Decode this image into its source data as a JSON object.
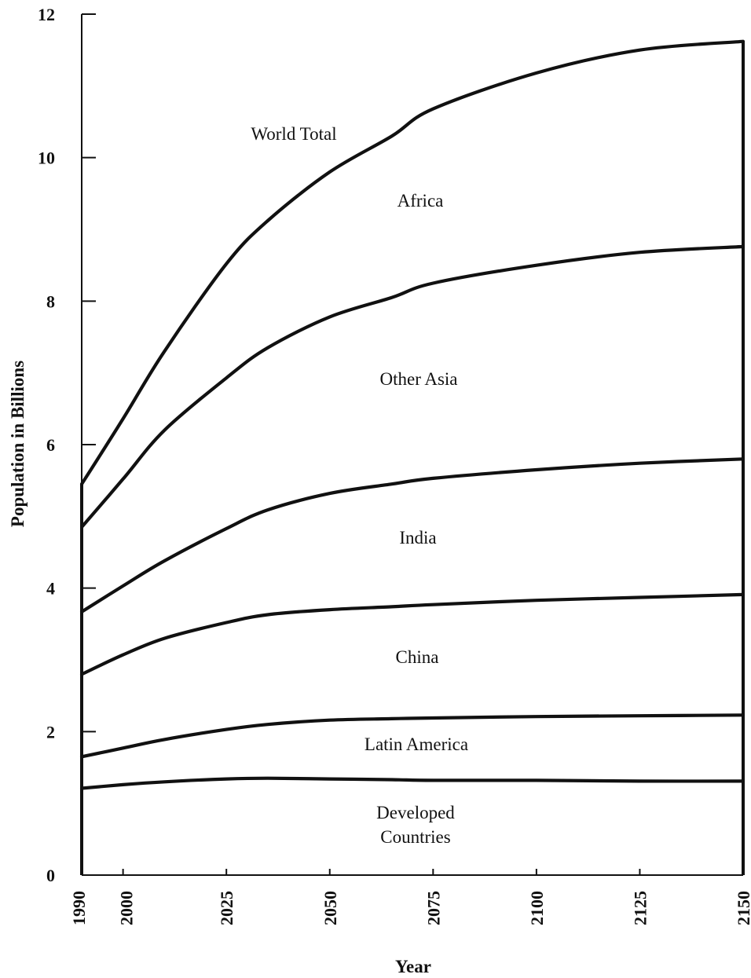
{
  "chart_data": {
    "type": "area",
    "stacked": true,
    "title": "",
    "xlabel": "Year",
    "ylabel": "Population in Billions",
    "xlim": [
      1990,
      2150
    ],
    "ylim": [
      0,
      12
    ],
    "x_ticks": [
      "1990",
      "2000",
      "2025",
      "2050",
      "2075",
      "2100",
      "2125",
      "2150"
    ],
    "y_ticks": [
      "0",
      "2",
      "4",
      "6",
      "8",
      "10",
      "12"
    ],
    "grid": false,
    "legend": "none (regions labeled inside bands)",
    "x": [
      1990,
      2000,
      2010,
      2025,
      2035,
      2050,
      2065,
      2075,
      2100,
      2125,
      2150
    ],
    "series": [
      {
        "name": "Developed Countries",
        "cumulative": [
          1.21,
          1.26,
          1.3,
          1.34,
          1.35,
          1.34,
          1.33,
          1.32,
          1.32,
          1.31,
          1.31
        ]
      },
      {
        "name": "Latin America",
        "cumulative": [
          1.65,
          1.77,
          1.89,
          2.03,
          2.1,
          2.16,
          2.18,
          2.19,
          2.21,
          2.22,
          2.23
        ]
      },
      {
        "name": "China",
        "cumulative": [
          2.8,
          3.07,
          3.3,
          3.52,
          3.63,
          3.7,
          3.74,
          3.77,
          3.83,
          3.87,
          3.91
        ]
      },
      {
        "name": "India",
        "cumulative": [
          3.67,
          4.03,
          4.38,
          4.83,
          5.09,
          5.32,
          5.45,
          5.53,
          5.65,
          5.74,
          5.8
        ]
      },
      {
        "name": "Other Asia",
        "cumulative": [
          4.85,
          5.52,
          6.2,
          6.93,
          7.35,
          7.78,
          8.05,
          8.25,
          8.5,
          8.68,
          8.76
        ]
      },
      {
        "name": "Africa",
        "cumulative": [
          5.45,
          6.36,
          7.3,
          8.52,
          9.12,
          9.8,
          10.3,
          10.68,
          11.18,
          11.5,
          11.62
        ]
      }
    ],
    "region_labels": [
      "World Total",
      "Africa",
      "Other Asia",
      "India",
      "China",
      "Latin America",
      "Developed\nCountries"
    ]
  }
}
